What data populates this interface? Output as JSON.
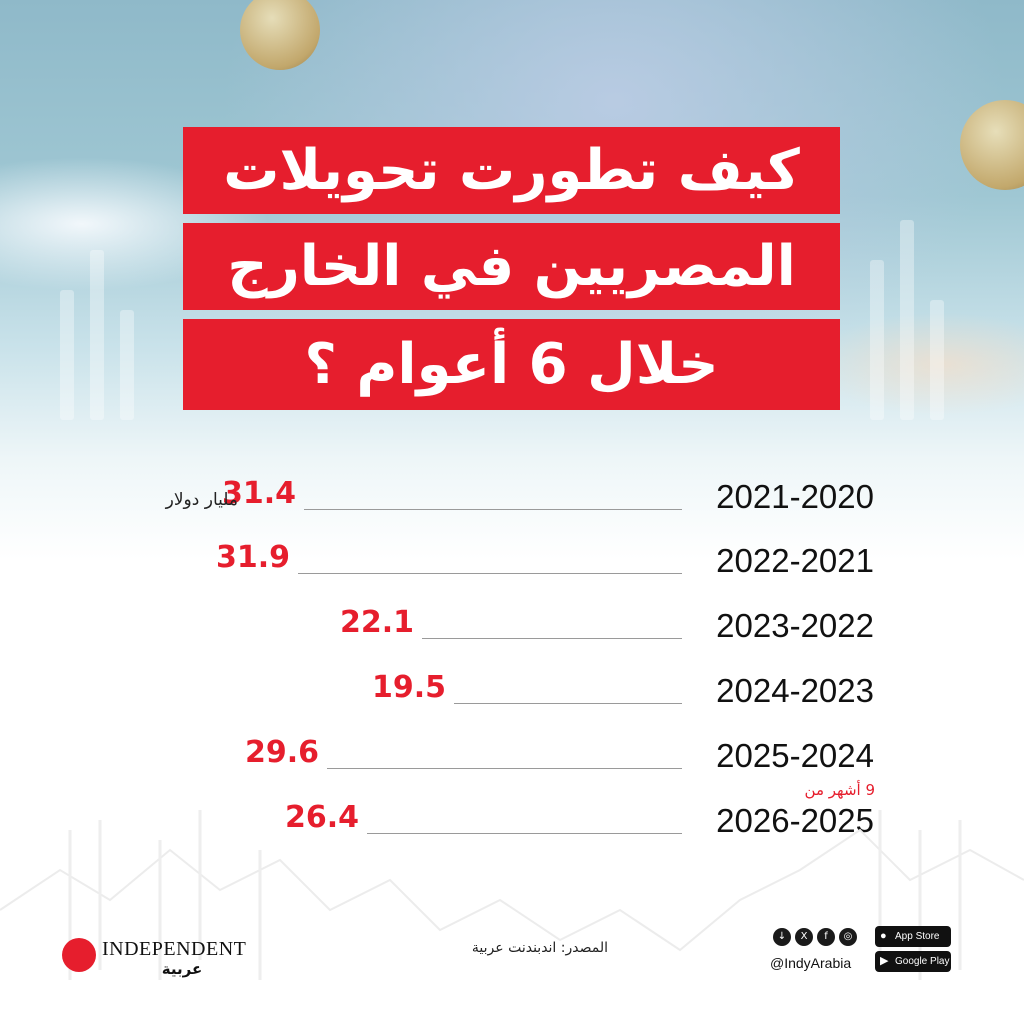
{
  "title": {
    "line1": "كيف تطورت تحويلات",
    "line2": "المصريين في الخارج",
    "line3": "خلال 6 أعوام ؟"
  },
  "chart_data": {
    "type": "bar",
    "categories": [
      "2021-2020",
      "2022-2021",
      "2023-2022",
      "2024-2023",
      "2025-2024",
      "2026-2025"
    ],
    "values": [
      31.4,
      31.9,
      22.1,
      19.5,
      29.6,
      26.4
    ],
    "value_labels": [
      "31.4",
      "31.9",
      "22.1",
      "19.5",
      "29.6",
      "26.4"
    ],
    "unit": "مليار دولار",
    "annotations": [
      {
        "category": "2026-2025",
        "text": "9 أشهر من"
      }
    ],
    "colors": {
      "value": "#e61e2d",
      "label": "#111111",
      "bar_line": "#9a9a9a"
    }
  },
  "footer": {
    "brand": "INDEPENDENT",
    "brand_sub": "عربية",
    "source": "المصدر: اندبندنت عربية",
    "handle": "@IndyArabia",
    "social_icons": [
      "download-icon",
      "x-icon",
      "facebook-icon",
      "instagram-icon"
    ],
    "app_store": "App Store",
    "google_play": "Google Play"
  },
  "colors": {
    "accent": "#e61e2d",
    "title_text": "#ffffff"
  }
}
